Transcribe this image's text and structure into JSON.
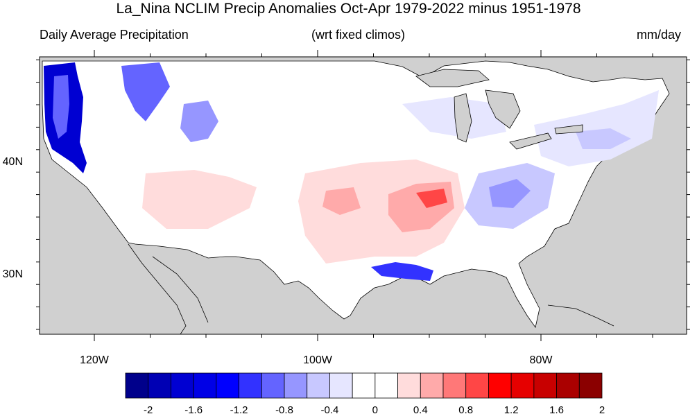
{
  "title": "La_Nina NCLIM Precip Anomalies Oct-Apr 1979-2022 minus 1951-1978",
  "left_label": "Daily Average Precipitation",
  "center_label": "(wrt fixed climos)",
  "right_label": "mm/day",
  "lon_ticks": [
    {
      "label": "120W",
      "lon": -120
    },
    {
      "label": "100W",
      "lon": -100
    },
    {
      "label": "80W",
      "lon": -80
    }
  ],
  "lat_ticks": [
    {
      "label": "40N",
      "lat": 40
    },
    {
      "label": "30N",
      "lat": 30
    }
  ],
  "colorbar": {
    "colors": [
      "#00008b",
      "#0000b4",
      "#0000d2",
      "#0000e6",
      "#0000ff",
      "#3232ff",
      "#6464ff",
      "#9696ff",
      "#c8c8ff",
      "#e6e6ff",
      "#ffffff",
      "#ffffff",
      "#ffdcdc",
      "#ffaaaa",
      "#ff7878",
      "#ff4646",
      "#ff0000",
      "#e60000",
      "#c80000",
      "#aa0000",
      "#8b0000"
    ],
    "tick_labels": [
      "-2",
      "-1.6",
      "-1.2",
      "-0.8",
      "-0.4",
      "0",
      "0.4",
      "0.8",
      "1.2",
      "1.6",
      "2"
    ]
  },
  "map_colors": {
    "land_nodata": "#d0d0d0",
    "strong_blue": "#0000d2",
    "mid_blue": "#6464ff",
    "light_blue": "#c8c8ff",
    "faint_blue": "#e6e6ff",
    "light_red": "#ffdcdc",
    "mid_red": "#ffaaaa",
    "strong_red": "#ff4646"
  }
}
